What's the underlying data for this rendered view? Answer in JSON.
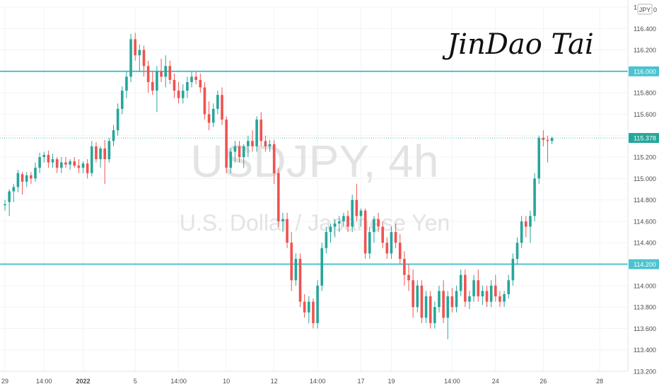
{
  "symbol_watermark": "USDJPY, 4h",
  "description_watermark": "U.S. Dollar / Japanese Yen",
  "signature": "JinDao Tai",
  "currency_badge": "JPY",
  "scale_mode_label": "0",
  "colors": {
    "up": "#26a69a",
    "down": "#ef5350",
    "level_line": "#4cc3cf",
    "price_label": "#26a69a",
    "level_label": "#4cc3cf",
    "grid": "#f0f3fa",
    "text": "#4a4a4a",
    "watermark": "#e3e3e3"
  },
  "chart_data": {
    "type": "candlestick",
    "y_axis": {
      "min": 113.2,
      "max": 116.6,
      "ticks": [
        "113.200",
        "113.400",
        "113.600",
        "113.800",
        "114.000",
        "114.200",
        "114.400",
        "114.600",
        "114.800",
        "115.000",
        "115.200",
        "115.400",
        "115.600",
        "115.800",
        "116.000",
        "116.200",
        "116.400",
        "1"
      ]
    },
    "x_axis": {
      "ticks": [
        {
          "label": "29",
          "bar": 0,
          "bold": false
        },
        {
          "label": "14:00",
          "bar": 9,
          "bold": false
        },
        {
          "label": "2022",
          "bar": 18,
          "bold": true
        },
        {
          "label": "5",
          "bar": 30,
          "bold": false
        },
        {
          "label": "14:00",
          "bar": 40,
          "bold": false
        },
        {
          "label": "10",
          "bar": 51,
          "bold": false
        },
        {
          "label": "12",
          "bar": 62,
          "bold": false
        },
        {
          "label": "14:00",
          "bar": 72,
          "bold": false
        },
        {
          "label": "17",
          "bar": 82,
          "bold": false
        },
        {
          "label": "19",
          "bar": 89,
          "bold": false
        },
        {
          "label": "14:00",
          "bar": 103,
          "bold": false
        },
        {
          "label": "24",
          "bar": 113,
          "bold": false
        },
        {
          "label": "26",
          "bar": 124,
          "bold": false
        },
        {
          "label": "28",
          "bar": 137,
          "bold": false
        }
      ]
    },
    "horizontal_lines": [
      {
        "price": 116.0,
        "label": "116.000"
      },
      {
        "price": 114.2,
        "label": "114.200"
      }
    ],
    "last_price": {
      "price": 115.378,
      "label": "115.378"
    },
    "candles": [
      [
        114.75,
        114.8,
        114.7,
        114.76
      ],
      [
        114.78,
        114.9,
        114.65,
        114.88
      ],
      [
        114.88,
        114.95,
        114.78,
        114.92
      ],
      [
        114.92,
        115.08,
        114.87,
        115.05
      ],
      [
        115.04,
        115.06,
        114.85,
        114.97
      ],
      [
        114.97,
        115.06,
        114.92,
        115.03
      ],
      [
        115.03,
        115.06,
        114.95,
        115.0
      ],
      [
        115.0,
        115.15,
        114.97,
        115.1
      ],
      [
        115.1,
        115.24,
        115.05,
        115.2
      ],
      [
        115.2,
        115.25,
        115.15,
        115.22
      ],
      [
        115.22,
        115.26,
        115.1,
        115.15
      ],
      [
        115.15,
        115.23,
        115.1,
        115.18
      ],
      [
        115.18,
        115.2,
        115.05,
        115.1
      ],
      [
        115.1,
        115.2,
        115.05,
        115.15
      ],
      [
        115.15,
        115.2,
        115.1,
        115.13
      ],
      [
        115.13,
        115.18,
        115.08,
        115.16
      ],
      [
        115.16,
        115.2,
        115.1,
        115.12
      ],
      [
        115.12,
        115.18,
        115.05,
        115.1
      ],
      [
        115.1,
        115.16,
        115.05,
        115.14
      ],
      [
        115.14,
        115.18,
        115.0,
        115.05
      ],
      [
        115.05,
        115.35,
        115.02,
        115.3
      ],
      [
        115.3,
        115.34,
        115.15,
        115.18
      ],
      [
        115.18,
        115.3,
        115.1,
        115.28
      ],
      [
        115.28,
        115.36,
        114.95,
        115.18
      ],
      [
        115.18,
        115.38,
        115.15,
        115.35
      ],
      [
        115.35,
        115.5,
        115.3,
        115.45
      ],
      [
        115.45,
        115.7,
        115.4,
        115.65
      ],
      [
        115.65,
        115.86,
        115.6,
        115.82
      ],
      [
        115.82,
        116.0,
        115.75,
        115.95
      ],
      [
        115.95,
        116.35,
        115.9,
        116.3
      ],
      [
        116.3,
        116.36,
        116.1,
        116.15
      ],
      [
        116.15,
        116.25,
        116.0,
        116.2
      ],
      [
        116.2,
        116.24,
        115.95,
        116.05
      ],
      [
        116.05,
        116.1,
        115.8,
        115.9
      ],
      [
        115.9,
        116.0,
        115.78,
        115.82
      ],
      [
        115.82,
        116.05,
        115.62,
        116.0
      ],
      [
        116.0,
        116.12,
        115.9,
        115.95
      ],
      [
        115.95,
        116.15,
        115.85,
        116.05
      ],
      [
        116.05,
        116.1,
        115.88,
        115.92
      ],
      [
        115.92,
        115.98,
        115.75,
        115.82
      ],
      [
        115.82,
        115.9,
        115.7,
        115.75
      ],
      [
        115.75,
        115.88,
        115.7,
        115.82
      ],
      [
        115.82,
        115.95,
        115.75,
        115.9
      ],
      [
        115.9,
        116.0,
        115.85,
        115.95
      ],
      [
        115.95,
        116.0,
        115.88,
        115.92
      ],
      [
        115.92,
        115.98,
        115.8,
        115.85
      ],
      [
        115.85,
        115.9,
        115.55,
        115.6
      ],
      [
        115.6,
        115.72,
        115.45,
        115.52
      ],
      [
        115.52,
        115.7,
        115.48,
        115.65
      ],
      [
        115.65,
        115.82,
        115.6,
        115.78
      ],
      [
        115.78,
        115.85,
        115.5,
        115.55
      ],
      [
        115.55,
        115.58,
        115.05,
        115.1
      ],
      [
        115.1,
        115.28,
        115.05,
        115.25
      ],
      [
        115.25,
        115.35,
        115.15,
        115.3
      ],
      [
        115.3,
        115.35,
        115.15,
        115.2
      ],
      [
        115.2,
        115.32,
        115.1,
        115.3
      ],
      [
        115.3,
        115.4,
        115.2,
        115.35
      ],
      [
        115.35,
        115.45,
        115.25,
        115.3
      ],
      [
        115.3,
        115.58,
        115.25,
        115.55
      ],
      [
        115.55,
        115.62,
        115.3,
        115.35
      ],
      [
        115.35,
        115.4,
        115.25,
        115.3
      ],
      [
        115.3,
        115.36,
        115.25,
        115.32
      ],
      [
        115.32,
        115.36,
        114.95,
        115.05
      ],
      [
        115.05,
        115.1,
        114.55,
        114.6
      ],
      [
        114.6,
        114.68,
        114.5,
        114.62
      ],
      [
        114.62,
        114.68,
        114.35,
        114.4
      ],
      [
        114.4,
        114.5,
        113.95,
        114.05
      ],
      [
        114.05,
        114.3,
        114.0,
        114.25
      ],
      [
        114.25,
        114.3,
        113.8,
        113.85
      ],
      [
        113.85,
        113.92,
        113.7,
        113.75
      ],
      [
        113.75,
        113.9,
        113.65,
        113.85
      ],
      [
        113.85,
        113.88,
        113.6,
        113.65
      ],
      [
        113.65,
        114.05,
        113.6,
        114.0
      ],
      [
        114.0,
        114.4,
        113.95,
        114.35
      ],
      [
        114.35,
        114.55,
        114.3,
        114.5
      ],
      [
        114.5,
        114.58,
        114.4,
        114.55
      ],
      [
        114.55,
        114.62,
        114.45,
        114.58
      ],
      [
        114.58,
        114.65,
        114.5,
        114.6
      ],
      [
        114.6,
        114.68,
        114.55,
        114.65
      ],
      [
        114.65,
        114.7,
        114.5,
        114.55
      ],
      [
        114.55,
        114.85,
        114.5,
        114.8
      ],
      [
        114.8,
        114.95,
        114.6,
        114.65
      ],
      [
        114.65,
        114.72,
        114.55,
        114.7
      ],
      [
        114.7,
        114.72,
        114.25,
        114.3
      ],
      [
        114.3,
        114.55,
        114.25,
        114.5
      ],
      [
        114.5,
        114.65,
        114.4,
        114.62
      ],
      [
        114.62,
        114.68,
        114.5,
        114.55
      ],
      [
        114.55,
        114.6,
        114.35,
        114.4
      ],
      [
        114.4,
        114.45,
        114.25,
        114.3
      ],
      [
        114.3,
        114.55,
        114.25,
        114.5
      ],
      [
        114.5,
        114.58,
        114.35,
        114.4
      ],
      [
        114.4,
        114.48,
        114.2,
        114.25
      ],
      [
        114.25,
        114.32,
        114.0,
        114.1
      ],
      [
        114.1,
        114.2,
        113.95,
        114.05
      ],
      [
        114.05,
        114.15,
        113.7,
        113.8
      ],
      [
        113.8,
        114.05,
        113.75,
        114.0
      ],
      [
        114.0,
        114.05,
        113.65,
        113.7
      ],
      [
        113.7,
        113.95,
        113.65,
        113.9
      ],
      [
        113.9,
        113.95,
        113.6,
        113.65
      ],
      [
        113.65,
        113.85,
        113.6,
        113.8
      ],
      [
        113.8,
        114.0,
        113.75,
        113.95
      ],
      [
        113.95,
        114.05,
        113.65,
        113.7
      ],
      [
        113.7,
        113.95,
        113.5,
        113.9
      ],
      [
        113.9,
        113.98,
        113.75,
        113.8
      ],
      [
        113.8,
        114.0,
        113.75,
        113.95
      ],
      [
        113.95,
        114.15,
        113.9,
        114.1
      ],
      [
        114.1,
        114.15,
        113.8,
        113.85
      ],
      [
        113.85,
        113.95,
        113.78,
        113.9
      ],
      [
        113.9,
        114.1,
        113.85,
        114.05
      ],
      [
        114.05,
        114.15,
        113.85,
        113.9
      ],
      [
        113.9,
        114.0,
        113.82,
        113.95
      ],
      [
        113.95,
        114.0,
        113.8,
        113.85
      ],
      [
        113.85,
        114.05,
        113.8,
        114.0
      ],
      [
        114.0,
        114.1,
        113.85,
        113.9
      ],
      [
        113.9,
        113.95,
        113.8,
        113.85
      ],
      [
        113.85,
        113.95,
        113.8,
        113.92
      ],
      [
        113.92,
        114.1,
        113.88,
        114.05
      ],
      [
        114.05,
        114.3,
        114.0,
        114.25
      ],
      [
        114.25,
        114.45,
        114.2,
        114.4
      ],
      [
        114.4,
        114.65,
        114.35,
        114.6
      ],
      [
        114.6,
        114.65,
        114.45,
        114.55
      ],
      [
        114.55,
        114.7,
        114.4,
        114.65
      ],
      [
        114.65,
        115.05,
        114.6,
        115.0
      ],
      [
        115.0,
        115.4,
        114.95,
        115.38
      ],
      [
        115.38,
        115.45,
        115.3,
        115.36
      ],
      [
        115.36,
        115.4,
        115.15,
        115.35
      ],
      [
        115.35,
        115.39,
        115.32,
        115.378
      ]
    ]
  }
}
